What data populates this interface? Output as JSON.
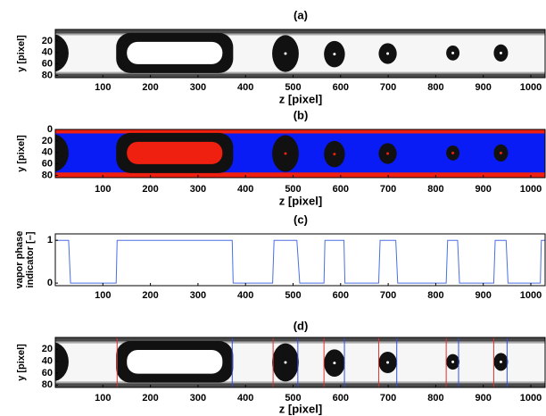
{
  "chart_data": [
    {
      "type": "image",
      "title": "(a)",
      "xlabel": "z [pixel]",
      "ylabel": "y [pixel]",
      "xlim": [
        0,
        1030
      ],
      "xticks": [
        100,
        200,
        300,
        400,
        500,
        600,
        700,
        800,
        900,
        1000
      ],
      "ylim": [
        0,
        84
      ],
      "yticks": [
        20,
        40,
        60,
        80
      ],
      "y_reversed": true
    },
    {
      "type": "segmentation",
      "title": "(b)",
      "xlabel": "z [pixel]",
      "ylabel": "y [pixel]",
      "xlim": [
        0,
        1030
      ],
      "xticks": [
        100,
        200,
        300,
        400,
        500,
        600,
        700,
        800,
        900,
        1000
      ],
      "ylim": [
        0,
        84
      ],
      "yticks": [
        0,
        20,
        40,
        60,
        80
      ],
      "y_reversed": true
    },
    {
      "type": "line",
      "title": "(c)",
      "ylabel": [
        "vapor phase",
        "indicator [–]"
      ],
      "xlim": [
        0,
        1030
      ],
      "xticks": [
        100,
        200,
        300,
        400,
        500,
        600,
        700,
        800,
        900,
        1000
      ],
      "ylim": [
        -0.06,
        1.15
      ],
      "yticks": [
        0,
        1
      ],
      "color": "#4a6fe0",
      "x": [
        0,
        28,
        32,
        128,
        130,
        372,
        374,
        457,
        460,
        508,
        514,
        565,
        567,
        607,
        609,
        680,
        683,
        716,
        720,
        822,
        825,
        846,
        850,
        922,
        925,
        948,
        952,
        1020,
        1022,
        1030
      ],
      "y": [
        1,
        1,
        0,
        0,
        1,
        1,
        0,
        0,
        1,
        1,
        0,
        0,
        1,
        1,
        0,
        0,
        1,
        1,
        0,
        0,
        1,
        1,
        0,
        0,
        1,
        1,
        0,
        0,
        1,
        1
      ]
    },
    {
      "type": "image",
      "title": "(d)",
      "xlabel": "z [pixel]",
      "ylabel": "y [pixel]",
      "xlim": [
        0,
        1030
      ],
      "xticks": [
        100,
        200,
        300,
        400,
        500,
        600,
        700,
        800,
        900,
        1000
      ],
      "ylim": [
        0,
        84
      ],
      "yticks": [
        20,
        40,
        60,
        80
      ],
      "y_reversed": true,
      "vlines": [
        {
          "color": "#e03030",
          "x": [
            130,
            458,
            565,
            680,
            822,
            922
          ]
        },
        {
          "color": "#3050e0",
          "x": [
            372,
            510,
            608,
            718,
            848,
            950
          ]
        }
      ]
    }
  ]
}
